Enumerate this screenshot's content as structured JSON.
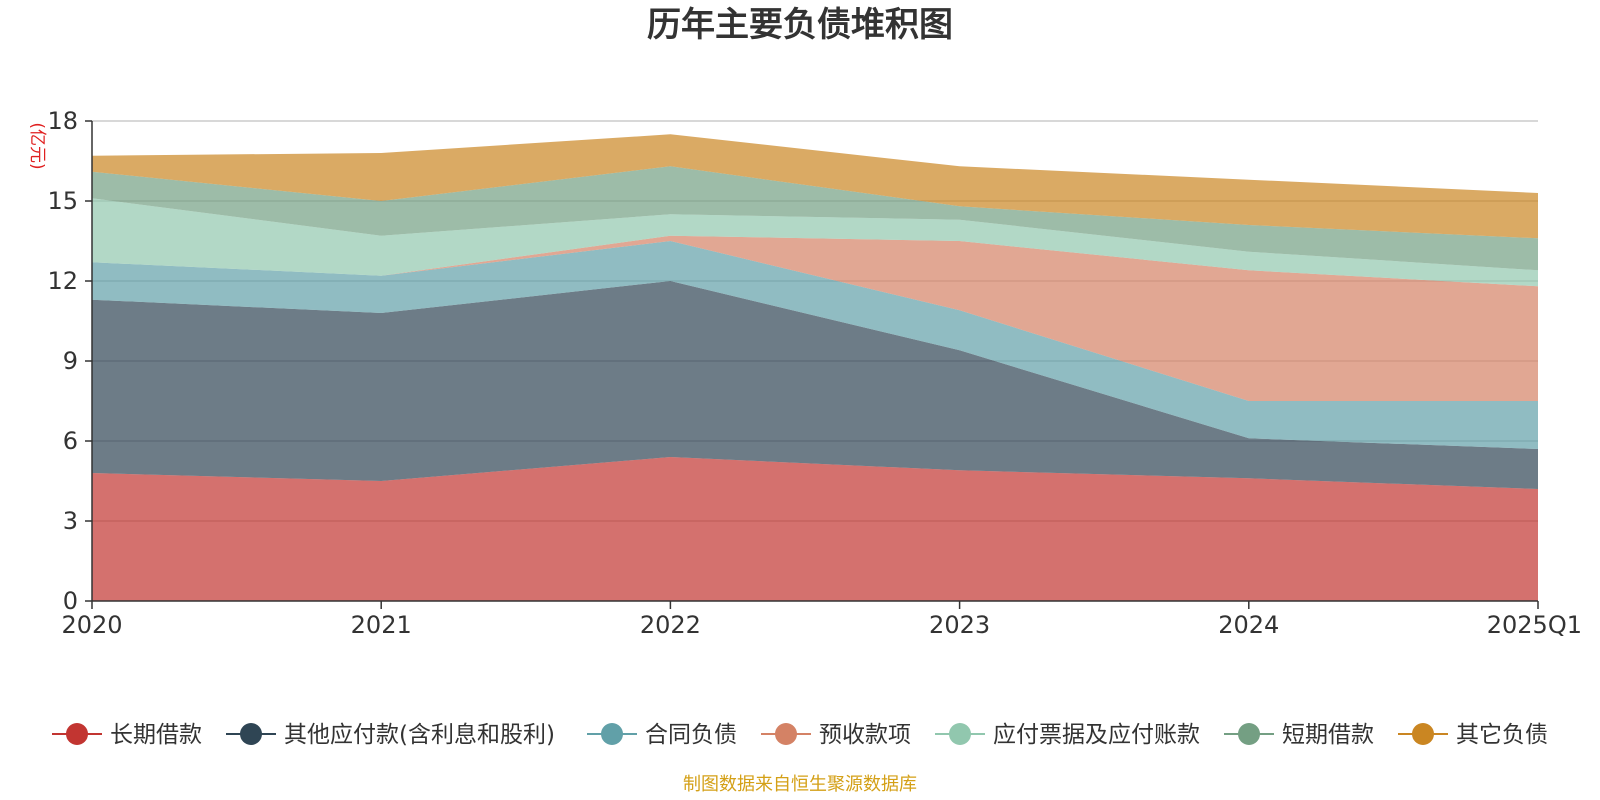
{
  "chart_data": {
    "type": "area",
    "stacked": true,
    "title": "历年主要负债堆积图",
    "ylabel": "(亿元)",
    "xlabel": "",
    "categories": [
      "2020",
      "2021",
      "2022",
      "2023",
      "2024",
      "2025Q1"
    ],
    "ylim": [
      0,
      18
    ],
    "yticks": [
      0,
      3,
      6,
      9,
      12,
      15,
      18
    ],
    "grid": true,
    "legend_position": "bottom",
    "series": [
      {
        "name": "长期借款",
        "color": "#c23531",
        "values": [
          4.8,
          4.5,
          5.4,
          4.9,
          4.6,
          4.2
        ]
      },
      {
        "name": "其他应付款(含利息和股利)",
        "color": "#2f4554",
        "values": [
          6.5,
          6.3,
          6.6,
          4.5,
          1.5,
          1.5
        ]
      },
      {
        "name": "合同负债",
        "color": "#61a0a8",
        "values": [
          1.4,
          1.4,
          1.5,
          1.5,
          1.4,
          1.8
        ]
      },
      {
        "name": "预收款项",
        "color": "#d48265",
        "values": [
          0.0,
          0.0,
          0.2,
          2.6,
          4.9,
          4.3
        ]
      },
      {
        "name": "应付票据及应付账款",
        "color": "#91c7ae",
        "values": [
          2.4,
          1.5,
          0.8,
          0.8,
          0.7,
          0.6
        ]
      },
      {
        "name": "短期借款",
        "color": "#749f83",
        "values": [
          1.0,
          1.3,
          1.8,
          0.5,
          1.0,
          1.2
        ]
      },
      {
        "name": "其它负债",
        "color": "#ca8622",
        "values": [
          0.6,
          1.8,
          1.2,
          1.5,
          1.7,
          1.7
        ]
      }
    ]
  },
  "source_note": "制图数据来自恒生聚源数据库"
}
